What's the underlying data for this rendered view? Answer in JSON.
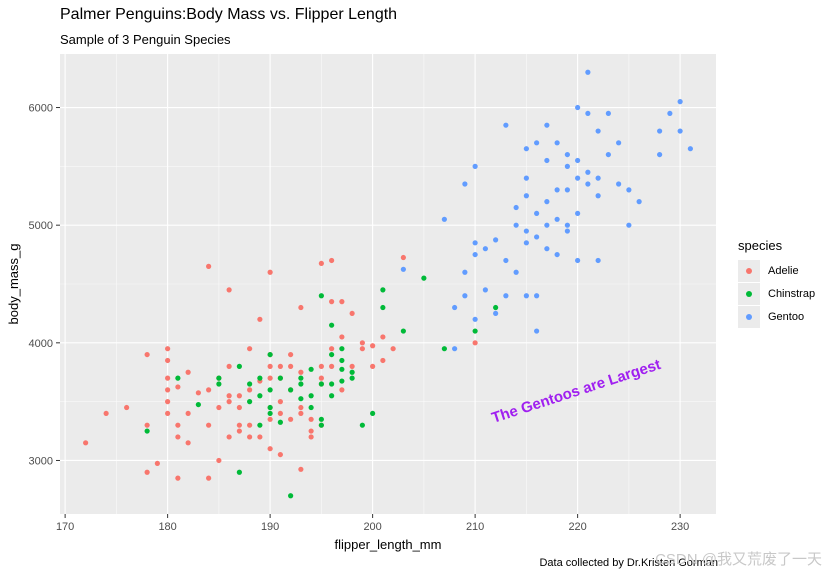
{
  "chart_data": {
    "type": "scatter",
    "title": "Palmer Penguins:Body Mass vs. Flipper Length",
    "subtitle": "Sample of 3 Penguin Species",
    "xlabel": "flipper_length_mm",
    "ylabel": "body_mass_g",
    "caption": "Data collected by Dr.Kristen Gorman",
    "annotation": "The Gentoos are Largest",
    "watermark": "CSDN @我又荒废了一天",
    "xlim": [
      169.5,
      233.5
    ],
    "ylim": [
      2545,
      6455
    ],
    "x_ticks": [
      170,
      180,
      190,
      200,
      210,
      220,
      230
    ],
    "y_ticks": [
      3000,
      4000,
      5000,
      6000
    ],
    "grid": true,
    "legend": {
      "title": "species",
      "position": "right"
    },
    "series": [
      {
        "name": "Adelie",
        "color": "#F8766D",
        "points": [
          [
            172,
            3150
          ],
          [
            174,
            3400
          ],
          [
            176,
            3450
          ],
          [
            178,
            2900
          ],
          [
            178,
            3900
          ],
          [
            178,
            3300
          ],
          [
            179,
            2975
          ],
          [
            180,
            3950
          ],
          [
            180,
            3850
          ],
          [
            180,
            3500
          ],
          [
            180,
            3700
          ],
          [
            180,
            3400
          ],
          [
            180,
            3600
          ],
          [
            181,
            3625
          ],
          [
            181,
            3300
          ],
          [
            181,
            3200
          ],
          [
            181,
            2850
          ],
          [
            182,
            3150
          ],
          [
            182,
            3400
          ],
          [
            182,
            3750
          ],
          [
            183,
            3575
          ],
          [
            184,
            4650
          ],
          [
            184,
            3600
          ],
          [
            184,
            3300
          ],
          [
            184,
            2850
          ],
          [
            185,
            3700
          ],
          [
            185,
            3450
          ],
          [
            185,
            3000
          ],
          [
            186,
            4450
          ],
          [
            186,
            3800
          ],
          [
            186,
            3500
          ],
          [
            186,
            3200
          ],
          [
            186,
            3550
          ],
          [
            187,
            3550
          ],
          [
            187,
            3300
          ],
          [
            187,
            3250
          ],
          [
            187,
            3450
          ],
          [
            188,
            3300
          ],
          [
            188,
            3600
          ],
          [
            188,
            3200
          ],
          [
            188,
            3950
          ],
          [
            189,
            3200
          ],
          [
            189,
            3675
          ],
          [
            189,
            4200
          ],
          [
            190,
            3700
          ],
          [
            190,
            3450
          ],
          [
            190,
            3350
          ],
          [
            190,
            3800
          ],
          [
            190,
            3900
          ],
          [
            190,
            4600
          ],
          [
            190,
            3100
          ],
          [
            191,
            3700
          ],
          [
            191,
            3500
          ],
          [
            191,
            3050
          ],
          [
            191,
            3400
          ],
          [
            191,
            3800
          ],
          [
            192,
            3900
          ],
          [
            192,
            3350
          ],
          [
            192,
            3600
          ],
          [
            192,
            3800
          ],
          [
            193,
            4300
          ],
          [
            193,
            3400
          ],
          [
            193,
            3750
          ],
          [
            193,
            3450
          ],
          [
            193,
            2925
          ],
          [
            194,
            3250
          ],
          [
            194,
            3350
          ],
          [
            194,
            3200
          ],
          [
            195,
            4675
          ],
          [
            195,
            3650
          ],
          [
            195,
            3800
          ],
          [
            195,
            3700
          ],
          [
            195,
            3300
          ],
          [
            196,
            4700
          ],
          [
            196,
            4350
          ],
          [
            196,
            3800
          ],
          [
            196,
            3950
          ],
          [
            197,
            4350
          ],
          [
            197,
            4050
          ],
          [
            197,
            3600
          ],
          [
            198,
            4250
          ],
          [
            198,
            3800
          ],
          [
            199,
            4000
          ],
          [
            199,
            3950
          ],
          [
            200,
            3975
          ],
          [
            200,
            3800
          ],
          [
            201,
            4050
          ],
          [
            201,
            3850
          ],
          [
            202,
            3950
          ],
          [
            203,
            4725
          ],
          [
            210,
            4000
          ]
        ]
      },
      {
        "name": "Chinstrap",
        "color": "#00BA38",
        "points": [
          [
            178,
            3250
          ],
          [
            181,
            3700
          ],
          [
            183,
            3475
          ],
          [
            185,
            3650
          ],
          [
            185,
            3700
          ],
          [
            187,
            3800
          ],
          [
            187,
            2900
          ],
          [
            188,
            3650
          ],
          [
            188,
            3500
          ],
          [
            189,
            3550
          ],
          [
            189,
            3300
          ],
          [
            189,
            3700
          ],
          [
            190,
            3900
          ],
          [
            190,
            3400
          ],
          [
            190,
            3450
          ],
          [
            190,
            3600
          ],
          [
            191,
            3700
          ],
          [
            191,
            3325
          ],
          [
            192,
            2700
          ],
          [
            192,
            3600
          ],
          [
            193,
            3525
          ],
          [
            193,
            3650
          ],
          [
            193,
            3700
          ],
          [
            194,
            3550
          ],
          [
            194,
            3775
          ],
          [
            194,
            3450
          ],
          [
            195,
            4400
          ],
          [
            195,
            3350
          ],
          [
            195,
            3300
          ],
          [
            195,
            3650
          ],
          [
            196,
            4150
          ],
          [
            196,
            3550
          ],
          [
            196,
            3650
          ],
          [
            196,
            3900
          ],
          [
            197,
            3675
          ],
          [
            197,
            3775
          ],
          [
            197,
            3850
          ],
          [
            197,
            3950
          ],
          [
            198,
            3750
          ],
          [
            198,
            3700
          ],
          [
            199,
            3300
          ],
          [
            200,
            3400
          ],
          [
            201,
            4300
          ],
          [
            201,
            4450
          ],
          [
            203,
            4100
          ],
          [
            205,
            4550
          ],
          [
            207,
            3950
          ],
          [
            212,
            4300
          ],
          [
            210,
            4100
          ]
        ]
      },
      {
        "name": "Gentoo",
        "color": "#619CFF",
        "points": [
          [
            203,
            4625
          ],
          [
            207,
            5050
          ],
          [
            208,
            3950
          ],
          [
            208,
            4300
          ],
          [
            209,
            5350
          ],
          [
            209,
            4600
          ],
          [
            209,
            4400
          ],
          [
            210,
            4750
          ],
          [
            210,
            4200
          ],
          [
            210,
            5500
          ],
          [
            210,
            4850
          ],
          [
            211,
            4800
          ],
          [
            211,
            4450
          ],
          [
            212,
            4875
          ],
          [
            212,
            4250
          ],
          [
            213,
            4700
          ],
          [
            213,
            5850
          ],
          [
            213,
            4400
          ],
          [
            214,
            4600
          ],
          [
            214,
            5000
          ],
          [
            214,
            5150
          ],
          [
            215,
            4950
          ],
          [
            215,
            5650
          ],
          [
            215,
            5250
          ],
          [
            215,
            4850
          ],
          [
            215,
            4400
          ],
          [
            215,
            5400
          ],
          [
            216,
            5100
          ],
          [
            216,
            4100
          ],
          [
            216,
            5700
          ],
          [
            216,
            4400
          ],
          [
            216,
            4900
          ],
          [
            217,
            5200
          ],
          [
            217,
            5850
          ],
          [
            217,
            5550
          ],
          [
            217,
            4800
          ],
          [
            217,
            5000
          ],
          [
            218,
            5300
          ],
          [
            218,
            5700
          ],
          [
            218,
            4750
          ],
          [
            218,
            5050
          ],
          [
            219,
            5600
          ],
          [
            219,
            5500
          ],
          [
            219,
            5000
          ],
          [
            219,
            4950
          ],
          [
            219,
            5300
          ],
          [
            220,
            5400
          ],
          [
            220,
            6000
          ],
          [
            220,
            5550
          ],
          [
            220,
            5100
          ],
          [
            220,
            4700
          ],
          [
            221,
            5950
          ],
          [
            221,
            5450
          ],
          [
            221,
            5350
          ],
          [
            221,
            6300
          ],
          [
            222,
            5800
          ],
          [
            222,
            5250
          ],
          [
            222,
            4700
          ],
          [
            222,
            5400
          ],
          [
            223,
            5600
          ],
          [
            223,
            5950
          ],
          [
            224,
            5350
          ],
          [
            224,
            5700
          ],
          [
            225,
            5300
          ],
          [
            225,
            5000
          ],
          [
            226,
            5200
          ],
          [
            228,
            5600
          ],
          [
            228,
            5800
          ],
          [
            229,
            5950
          ],
          [
            230,
            5800
          ],
          [
            230,
            6050
          ],
          [
            231,
            5650
          ]
        ]
      }
    ]
  }
}
